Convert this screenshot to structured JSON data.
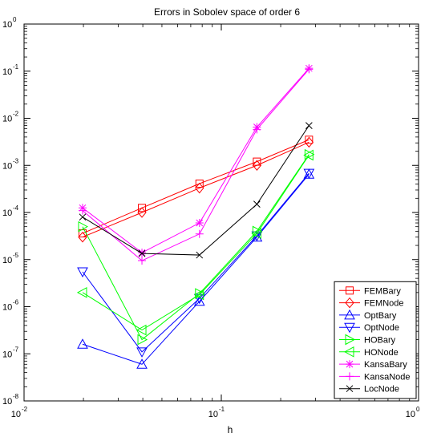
{
  "chart_data": {
    "type": "line",
    "title": "Errors in Sobolev space of order 6",
    "xlabel": "h",
    "ylabel": "",
    "x_scale": "log",
    "y_scale": "log",
    "xlim": [
      0.01,
      1
    ],
    "ylim": [
      1e-08,
      1
    ],
    "x_ticks": [
      {
        "base": "10",
        "exp": "-2",
        "value": 0.01
      },
      {
        "base": "10",
        "exp": "-1",
        "value": 0.1
      },
      {
        "base": "10",
        "exp": "0",
        "value": 1
      }
    ],
    "y_ticks": [
      {
        "base": "10",
        "exp": "0",
        "value": 1
      },
      {
        "base": "10",
        "exp": "-1",
        "value": 0.1
      },
      {
        "base": "10",
        "exp": "-2",
        "value": 0.01
      },
      {
        "base": "10",
        "exp": "-3",
        "value": 0.001
      },
      {
        "base": "10",
        "exp": "-4",
        "value": 0.0001
      },
      {
        "base": "10",
        "exp": "-5",
        "value": 1e-05
      },
      {
        "base": "10",
        "exp": "-6",
        "value": 1e-06
      },
      {
        "base": "10",
        "exp": "-7",
        "value": 1e-07
      },
      {
        "base": "10",
        "exp": "-8",
        "value": 1e-08
      }
    ],
    "grid": false,
    "legend_position": "bottom-right",
    "x": [
      0.0198,
      0.0396,
      0.0775,
      0.1515,
      0.2783
    ],
    "series": [
      {
        "name": "FEMBary",
        "color": "#ff0000",
        "marker": "square",
        "values": [
          3.6e-05,
          0.000125,
          0.00041,
          0.0012,
          0.0035
        ]
      },
      {
        "name": "FEMNode",
        "color": "#ff0000",
        "marker": "diamond",
        "values": [
          3e-05,
          0.0001,
          0.00033,
          0.001,
          0.0031
        ]
      },
      {
        "name": "OptBary",
        "color": "#0000ff",
        "marker": "triangle-up",
        "values": [
          1.6e-07,
          6e-08,
          1.3e-06,
          3e-05,
          0.00065
        ]
      },
      {
        "name": "OptNode",
        "color": "#0000ff",
        "marker": "triangle-down",
        "values": [
          5.5e-06,
          1.1e-07,
          1.5e-06,
          3.2e-05,
          0.00068
        ]
      },
      {
        "name": "HOBary",
        "color": "#00ff00",
        "marker": "triangle-right",
        "values": [
          5e-05,
          2e-07,
          1.9e-06,
          4e-05,
          0.0017
        ]
      },
      {
        "name": "HONode",
        "color": "#00ff00",
        "marker": "triangle-left",
        "values": [
          2e-06,
          3.2e-07,
          1.8e-06,
          3.6e-05,
          0.00165
        ]
      },
      {
        "name": "KansaBary",
        "color": "#ff00ff",
        "marker": "asterisk",
        "values": [
          0.000125,
          1.4e-05,
          6e-05,
          0.0065,
          0.115
        ]
      },
      {
        "name": "KansaNode",
        "color": "#ff00ff",
        "marker": "plus",
        "values": [
          0.00011,
          9.5e-06,
          3.5e-05,
          0.0058,
          0.11
        ]
      },
      {
        "name": "LocNode",
        "color": "#000000",
        "marker": "x",
        "values": [
          8e-05,
          1.35e-05,
          1.25e-05,
          0.00015,
          0.007
        ]
      }
    ]
  }
}
